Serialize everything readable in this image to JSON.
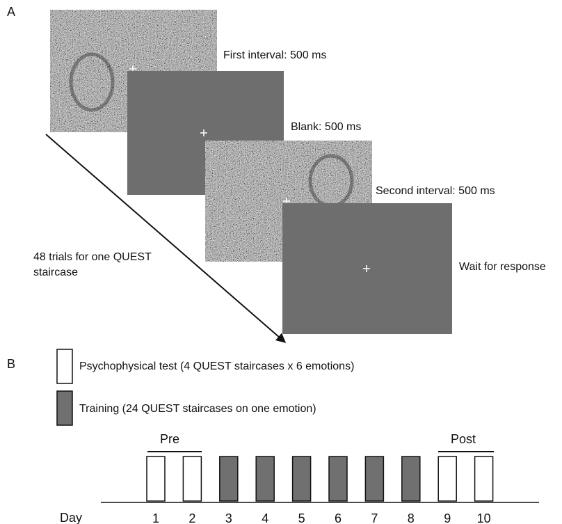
{
  "panel_a": {
    "label": "A",
    "intervals": [
      {
        "label": "First interval: 500 ms"
      },
      {
        "label": "Blank: 500 ms"
      },
      {
        "label": "Second interval: 500 ms"
      },
      {
        "label": "Wait for response"
      }
    ],
    "trials_note": "48 trials for one QUEST staircase"
  },
  "panel_b": {
    "label": "B",
    "legend": [
      {
        "label": "Psychophysical test (4 QUEST staircases x 6 emotions)",
        "color": "#ffffff"
      },
      {
        "label": "Training (24 QUEST staircases on one emotion)",
        "color": "#707070"
      }
    ],
    "pre": "Pre",
    "post": "Post",
    "day_label": "Day",
    "days": [
      {
        "day": 1,
        "color": "#ffffff"
      },
      {
        "day": 2,
        "color": "#ffffff"
      },
      {
        "day": 3,
        "color": "#707070"
      },
      {
        "day": 4,
        "color": "#707070"
      },
      {
        "day": 5,
        "color": "#707070"
      },
      {
        "day": 6,
        "color": "#707070"
      },
      {
        "day": 7,
        "color": "#707070"
      },
      {
        "day": 8,
        "color": "#707070"
      },
      {
        "day": 9,
        "color": "#ffffff"
      },
      {
        "day": 10,
        "color": "#ffffff"
      }
    ]
  }
}
